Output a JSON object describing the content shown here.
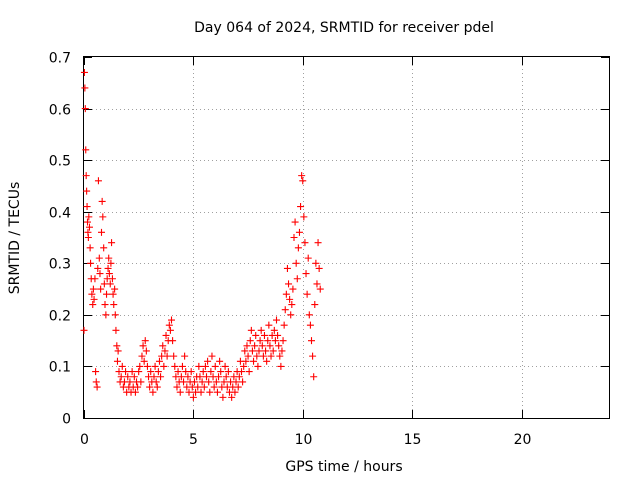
{
  "chart_data": {
    "type": "scatter",
    "title": "Day 064 of 2024, SRMTID for receiver pdel",
    "xlabel": "GPS time / hours",
    "ylabel": "SRMTID / TECUs",
    "xlim": [
      0,
      24
    ],
    "ylim": [
      0,
      0.7
    ],
    "xticks": [
      0,
      5,
      10,
      15,
      20
    ],
    "yticks": [
      0,
      0.1,
      0.2,
      0.3,
      0.4,
      0.5,
      0.6,
      0.7
    ],
    "grid": true,
    "marker": "+",
    "color": "#ff0000",
    "series": [
      {
        "name": "SRMTID",
        "points": [
          [
            0.0,
            0.17
          ],
          [
            0.02,
            0.67
          ],
          [
            0.04,
            0.64
          ],
          [
            0.06,
            0.6
          ],
          [
            0.08,
            0.52
          ],
          [
            0.1,
            0.47
          ],
          [
            0.12,
            0.44
          ],
          [
            0.14,
            0.41
          ],
          [
            0.16,
            0.38
          ],
          [
            0.18,
            0.36
          ],
          [
            0.2,
            0.35
          ],
          [
            0.22,
            0.39
          ],
          [
            0.25,
            0.37
          ],
          [
            0.28,
            0.33
          ],
          [
            0.3,
            0.3
          ],
          [
            0.33,
            0.27
          ],
          [
            0.36,
            0.24
          ],
          [
            0.4,
            0.22
          ],
          [
            0.43,
            0.25
          ],
          [
            0.46,
            0.23
          ],
          [
            0.5,
            0.27
          ],
          [
            0.53,
            0.09
          ],
          [
            0.56,
            0.07
          ],
          [
            0.6,
            0.06
          ],
          [
            0.63,
            0.29
          ],
          [
            0.66,
            0.46
          ],
          [
            0.7,
            0.31
          ],
          [
            0.73,
            0.28
          ],
          [
            0.76,
            0.25
          ],
          [
            0.8,
            0.36
          ],
          [
            0.83,
            0.42
          ],
          [
            0.86,
            0.39
          ],
          [
            0.9,
            0.33
          ],
          [
            0.93,
            0.26
          ],
          [
            0.96,
            0.22
          ],
          [
            1.0,
            0.2
          ],
          [
            1.03,
            0.24
          ],
          [
            1.06,
            0.27
          ],
          [
            1.1,
            0.29
          ],
          [
            1.13,
            0.31
          ],
          [
            1.16,
            0.28
          ],
          [
            1.2,
            0.26
          ],
          [
            1.23,
            0.3
          ],
          [
            1.26,
            0.34
          ],
          [
            1.3,
            0.27
          ],
          [
            1.33,
            0.24
          ],
          [
            1.36,
            0.22
          ],
          [
            1.4,
            0.25
          ],
          [
            1.43,
            0.2
          ],
          [
            1.46,
            0.17
          ],
          [
            1.5,
            0.14
          ],
          [
            1.53,
            0.11
          ],
          [
            1.56,
            0.13
          ],
          [
            1.6,
            0.09
          ],
          [
            1.65,
            0.07
          ],
          [
            1.7,
            0.08
          ],
          [
            1.75,
            0.1
          ],
          [
            1.8,
            0.06
          ],
          [
            1.85,
            0.07
          ],
          [
            1.9,
            0.09
          ],
          [
            1.95,
            0.05
          ],
          [
            2.0,
            0.08
          ],
          [
            2.05,
            0.06
          ],
          [
            2.1,
            0.07
          ],
          [
            2.15,
            0.05
          ],
          [
            2.2,
            0.09
          ],
          [
            2.25,
            0.06
          ],
          [
            2.3,
            0.08
          ],
          [
            2.35,
            0.05
          ],
          [
            2.4,
            0.07
          ],
          [
            2.45,
            0.06
          ],
          [
            2.5,
            0.09
          ],
          [
            2.55,
            0.1
          ],
          [
            2.6,
            0.07
          ],
          [
            2.65,
            0.12
          ],
          [
            2.7,
            0.14
          ],
          [
            2.75,
            0.11
          ],
          [
            2.8,
            0.15
          ],
          [
            2.85,
            0.13
          ],
          [
            2.9,
            0.1
          ],
          [
            2.95,
            0.08
          ],
          [
            3.0,
            0.06
          ],
          [
            3.05,
            0.09
          ],
          [
            3.1,
            0.07
          ],
          [
            3.15,
            0.05
          ],
          [
            3.2,
            0.08
          ],
          [
            3.25,
            0.1
          ],
          [
            3.3,
            0.07
          ],
          [
            3.35,
            0.06
          ],
          [
            3.4,
            0.09
          ],
          [
            3.45,
            0.11
          ],
          [
            3.5,
            0.08
          ],
          [
            3.55,
            0.12
          ],
          [
            3.6,
            0.14
          ],
          [
            3.65,
            0.1
          ],
          [
            3.7,
            0.13
          ],
          [
            3.75,
            0.16
          ],
          [
            3.8,
            0.12
          ],
          [
            3.85,
            0.15
          ],
          [
            3.9,
            0.18
          ],
          [
            3.95,
            0.17
          ],
          [
            4.0,
            0.19
          ],
          [
            4.05,
            0.15
          ],
          [
            4.1,
            0.12
          ],
          [
            4.15,
            0.1
          ],
          [
            4.2,
            0.08
          ],
          [
            4.25,
            0.06
          ],
          [
            4.3,
            0.09
          ],
          [
            4.35,
            0.07
          ],
          [
            4.4,
            0.05
          ],
          [
            4.45,
            0.08
          ],
          [
            4.5,
            0.1
          ],
          [
            4.55,
            0.07
          ],
          [
            4.6,
            0.12
          ],
          [
            4.65,
            0.09
          ],
          [
            4.7,
            0.06
          ],
          [
            4.75,
            0.08
          ],
          [
            4.8,
            0.05
          ],
          [
            4.85,
            0.07
          ],
          [
            4.9,
            0.09
          ],
          [
            4.95,
            0.06
          ],
          [
            5.0,
            0.04
          ],
          [
            5.05,
            0.07
          ],
          [
            5.1,
            0.05
          ],
          [
            5.15,
            0.08
          ],
          [
            5.2,
            0.06
          ],
          [
            5.25,
            0.1
          ],
          [
            5.3,
            0.08
          ],
          [
            5.35,
            0.05
          ],
          [
            5.4,
            0.07
          ],
          [
            5.45,
            0.09
          ],
          [
            5.5,
            0.06
          ],
          [
            5.55,
            0.1
          ],
          [
            5.6,
            0.08
          ],
          [
            5.65,
            0.11
          ],
          [
            5.7,
            0.07
          ],
          [
            5.75,
            0.05
          ],
          [
            5.8,
            0.09
          ],
          [
            5.85,
            0.12
          ],
          [
            5.9,
            0.08
          ],
          [
            5.95,
            0.06
          ],
          [
            6.0,
            0.1
          ],
          [
            6.05,
            0.07
          ],
          [
            6.1,
            0.05
          ],
          [
            6.15,
            0.08
          ],
          [
            6.2,
            0.11
          ],
          [
            6.25,
            0.09
          ],
          [
            6.3,
            0.06
          ],
          [
            6.35,
            0.04
          ],
          [
            6.4,
            0.07
          ],
          [
            6.45,
            0.1
          ],
          [
            6.5,
            0.08
          ],
          [
            6.55,
            0.06
          ],
          [
            6.6,
            0.09
          ],
          [
            6.65,
            0.05
          ],
          [
            6.7,
            0.07
          ],
          [
            6.75,
            0.04
          ],
          [
            6.8,
            0.06
          ],
          [
            6.85,
            0.08
          ],
          [
            6.9,
            0.05
          ],
          [
            6.95,
            0.07
          ],
          [
            7.0,
            0.09
          ],
          [
            7.05,
            0.06
          ],
          [
            7.1,
            0.08
          ],
          [
            7.15,
            0.11
          ],
          [
            7.2,
            0.09
          ],
          [
            7.25,
            0.07
          ],
          [
            7.3,
            0.1
          ],
          [
            7.35,
            0.13
          ],
          [
            7.4,
            0.11
          ],
          [
            7.45,
            0.14
          ],
          [
            7.5,
            0.12
          ],
          [
            7.55,
            0.09
          ],
          [
            7.6,
            0.15
          ],
          [
            7.65,
            0.17
          ],
          [
            7.7,
            0.13
          ],
          [
            7.75,
            0.11
          ],
          [
            7.8,
            0.14
          ],
          [
            7.85,
            0.16
          ],
          [
            7.9,
            0.12
          ],
          [
            7.95,
            0.1
          ],
          [
            8.0,
            0.13
          ],
          [
            8.05,
            0.15
          ],
          [
            8.1,
            0.17
          ],
          [
            8.15,
            0.14
          ],
          [
            8.2,
            0.12
          ],
          [
            8.25,
            0.16
          ],
          [
            8.3,
            0.13
          ],
          [
            8.35,
            0.11
          ],
          [
            8.4,
            0.15
          ],
          [
            8.45,
            0.18
          ],
          [
            8.5,
            0.14
          ],
          [
            8.55,
            0.12
          ],
          [
            8.6,
            0.16
          ],
          [
            8.65,
            0.13
          ],
          [
            8.7,
            0.17
          ],
          [
            8.75,
            0.15
          ],
          [
            8.8,
            0.19
          ],
          [
            8.85,
            0.16
          ],
          [
            8.9,
            0.14
          ],
          [
            8.95,
            0.12
          ],
          [
            9.0,
            0.1
          ],
          [
            9.05,
            0.13
          ],
          [
            9.1,
            0.15
          ],
          [
            9.15,
            0.18
          ],
          [
            9.2,
            0.21
          ],
          [
            9.25,
            0.24
          ],
          [
            9.3,
            0.29
          ],
          [
            9.35,
            0.26
          ],
          [
            9.4,
            0.23
          ],
          [
            9.45,
            0.2
          ],
          [
            9.5,
            0.22
          ],
          [
            9.55,
            0.25
          ],
          [
            9.6,
            0.35
          ],
          [
            9.65,
            0.38
          ],
          [
            9.7,
            0.3
          ],
          [
            9.75,
            0.27
          ],
          [
            9.8,
            0.33
          ],
          [
            9.85,
            0.36
          ],
          [
            9.9,
            0.41
          ],
          [
            9.95,
            0.47
          ],
          [
            10.0,
            0.46
          ],
          [
            10.05,
            0.39
          ],
          [
            10.1,
            0.34
          ],
          [
            10.15,
            0.28
          ],
          [
            10.2,
            0.24
          ],
          [
            10.25,
            0.31
          ],
          [
            10.3,
            0.2
          ],
          [
            10.35,
            0.18
          ],
          [
            10.4,
            0.15
          ],
          [
            10.45,
            0.12
          ],
          [
            10.5,
            0.08
          ],
          [
            10.55,
            0.22
          ],
          [
            10.6,
            0.3
          ],
          [
            10.65,
            0.26
          ],
          [
            10.7,
            0.34
          ],
          [
            10.75,
            0.29
          ],
          [
            10.8,
            0.25
          ]
        ]
      }
    ]
  }
}
